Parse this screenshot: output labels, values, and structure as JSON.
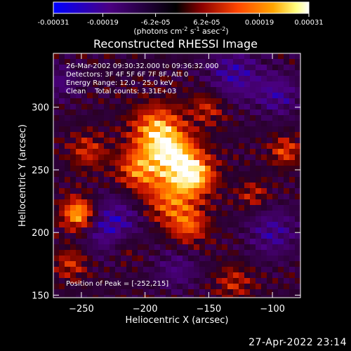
{
  "colorbar": {
    "tick_labels": [
      "-0.00031",
      "-0.00019",
      "-6.2e-05",
      "6.2e-05",
      "0.00019",
      "0.00031"
    ],
    "tick_values": [
      -0.00031,
      -0.00019,
      -6.2e-05,
      6.2e-05,
      0.00019,
      0.00031
    ],
    "range": [
      -0.00031,
      0.00031
    ],
    "units_label": "(photons cm",
    "units_exp1": "-2",
    "units_mid": " s",
    "units_exp2": "-1",
    "units_mid2": " asec",
    "units_exp3": "-2",
    "units_close": ")",
    "colors": [
      "#0000ff",
      "#4b0082",
      "#000000",
      "#8b0000",
      "#ff4500",
      "#ffa500",
      "#ffff80",
      "#ffffff"
    ]
  },
  "chart_data": {
    "type": "heatmap",
    "title": "Reconstructed RHESSI Image",
    "xlabel": "Heliocentric X (arcsec)",
    "ylabel": "Heliocentric Y (arcsec)",
    "xlim": [
      -272,
      -78
    ],
    "ylim": [
      148,
      343
    ],
    "x_ticks": [
      -250,
      -200,
      -150,
      -100
    ],
    "y_ticks": [
      150,
      200,
      250,
      300
    ],
    "x_tick_labels": [
      "−250",
      "−200",
      "−150",
      "−100"
    ],
    "y_tick_labels": [
      "150",
      "200",
      "250",
      "300"
    ],
    "annotations": [
      "26-Mar-2002 09:30:32.000 to 09:36:32.000",
      "Detectors: 3F 4F 5F 6F 7F 8F, Att 0",
      "Energy Range: 12.0 - 25.0 keV",
      "Clean    Total counts: 3.31E+03"
    ],
    "peak_label": "Position of Peak = [-252,215]",
    "peak_position": [
      -252,
      215
    ],
    "sources": [
      {
        "x": -252,
        "y": 215,
        "amp": 1.0,
        "sigma": 9
      },
      {
        "x": -190,
        "y": 280,
        "amp": 0.95,
        "sigma": 14
      },
      {
        "x": -175,
        "y": 258,
        "amp": 0.9,
        "sigma": 13
      },
      {
        "x": -160,
        "y": 245,
        "amp": 0.8,
        "sigma": 11
      },
      {
        "x": -205,
        "y": 250,
        "amp": 0.7,
        "sigma": 12
      },
      {
        "x": -180,
        "y": 225,
        "amp": 0.65,
        "sigma": 14
      },
      {
        "x": -165,
        "y": 205,
        "amp": 0.55,
        "sigma": 10
      },
      {
        "x": -150,
        "y": 300,
        "amp": 0.45,
        "sigma": 10
      },
      {
        "x": -245,
        "y": 265,
        "amp": 0.45,
        "sigma": 10
      },
      {
        "x": -258,
        "y": 175,
        "amp": 0.45,
        "sigma": 9
      },
      {
        "x": -90,
        "y": 265,
        "amp": 0.55,
        "sigma": 8
      },
      {
        "x": -115,
        "y": 230,
        "amp": 0.4,
        "sigma": 8
      },
      {
        "x": -130,
        "y": 160,
        "amp": 0.4,
        "sigma": 10
      },
      {
        "x": -215,
        "y": 190,
        "amp": 0.35,
        "sigma": 9
      }
    ],
    "negative_regions": [
      {
        "x": -225,
        "y": 205,
        "amp": 0.6,
        "sigma": 16
      },
      {
        "x": -130,
        "y": 325,
        "amp": 0.5,
        "sigma": 16
      },
      {
        "x": -100,
        "y": 200,
        "amp": 0.45,
        "sigma": 14
      },
      {
        "x": -95,
        "y": 310,
        "amp": 0.45,
        "sigma": 12
      },
      {
        "x": -175,
        "y": 170,
        "amp": 0.35,
        "sigma": 12
      },
      {
        "x": -265,
        "y": 320,
        "amp": 0.35,
        "sigma": 10
      }
    ]
  },
  "footer": {
    "timestamp": "27-Apr-2022 23:14"
  }
}
